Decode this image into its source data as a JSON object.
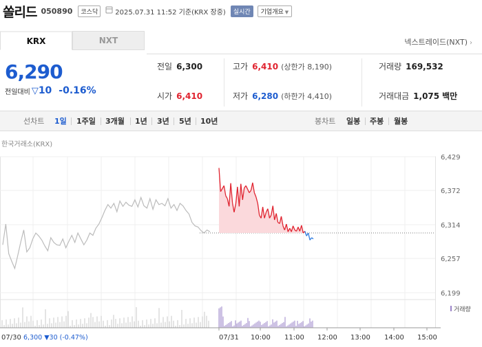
{
  "header": {
    "stock_name": "쏠리드",
    "stock_code": "050890",
    "market_badge": "코스닥",
    "datetime": "2025.07.31 11:52 기준(KRX 장중)",
    "realtime_badge": "실시간",
    "corp_info_button": "기업개요"
  },
  "tabs": [
    {
      "label": "KRX",
      "active": true
    },
    {
      "label": "NXT",
      "active": false
    }
  ],
  "nxt_link": "넥스트레이드(NXT)",
  "quote": {
    "price": "6,290",
    "change_label": "전일대비",
    "change_amount": "10",
    "change_percent": "-0.16%"
  },
  "stats": {
    "prev_close": {
      "label": "전일",
      "value": "6,300"
    },
    "high": {
      "label": "고가",
      "value": "6,410",
      "limit_label": "(상한가 8,190)"
    },
    "volume": {
      "label": "거래량",
      "value": "169,532"
    },
    "open": {
      "label": "시가",
      "value": "6,410"
    },
    "low": {
      "label": "저가",
      "value": "6,280",
      "limit_label": "(하한가 4,410)"
    },
    "turnover": {
      "label": "거래대금",
      "value": "1,075",
      "unit": "백만"
    }
  },
  "toolbar": {
    "line_chart_label": "선차트",
    "line_periods": [
      "1일",
      "1주일",
      "3개월",
      "1년",
      "3년",
      "5년",
      "10년"
    ],
    "selected_period": "1일",
    "candle_chart_label": "봉차트",
    "candle_periods": [
      "일봉",
      "주봉",
      "월봉"
    ]
  },
  "chart_data": {
    "type": "line",
    "title": "한국거래소(KRX)",
    "yticks": [
      "6,429",
      "6,372",
      "6,314",
      "6,257",
      "6,199"
    ],
    "ylim": [
      6199,
      6429
    ],
    "xticks": [
      "07/31",
      "10:00",
      "11:00",
      "12:00",
      "13:00",
      "14:00",
      "15:00"
    ],
    "reference_line": 6300,
    "prev_day_label": "07/30",
    "prev_day_summary": "6,300 ▼30 (-0.47%)",
    "volume_legend": "거래량",
    "series": [
      {
        "name": "07/30",
        "color": "#bbbbbb",
        "values": [
          6280,
          6315,
          6265,
          6252,
          6240,
          6262,
          6285,
          6305,
          6268,
          6275,
          6290,
          6300,
          6295,
          6288,
          6278,
          6270,
          6292,
          6284,
          6280,
          6279,
          6290,
          6275,
          6286,
          6296,
          6284,
          6300,
          6290,
          6280,
          6288,
          6300,
          6296,
          6308,
          6315,
          6326,
          6338,
          6348,
          6342,
          6350,
          6336,
          6354,
          6345,
          6352,
          6347,
          6345,
          6356,
          6344,
          6360,
          6346,
          6342,
          6358,
          6340,
          6356,
          6348,
          6350,
          6346,
          6358,
          6342,
          6348,
          6338,
          6350,
          6346,
          6338,
          6332,
          6318,
          6312,
          6310,
          6304,
          6300,
          6305,
          6302
        ]
      },
      {
        "name": "07/31",
        "color": "#e0232f",
        "values": [
          6410,
          6370,
          6375,
          6380,
          6363,
          6358,
          6345,
          6384,
          6351,
          6335,
          6350,
          6378,
          6345,
          6383,
          6356,
          6376,
          6380,
          6374,
          6368,
          6372,
          6385,
          6368,
          6361,
          6350,
          6330,
          6325,
          6344,
          6325,
          6335,
          6341,
          6325,
          6330,
          6346,
          6322,
          6333,
          6318,
          6316,
          6328,
          6312,
          6305,
          6315,
          6302,
          6308,
          6302,
          6312,
          6305,
          6303,
          6310,
          6303,
          6313,
          6300,
          6303,
          6295,
          6300,
          6288,
          6292,
          6290
        ]
      }
    ]
  }
}
